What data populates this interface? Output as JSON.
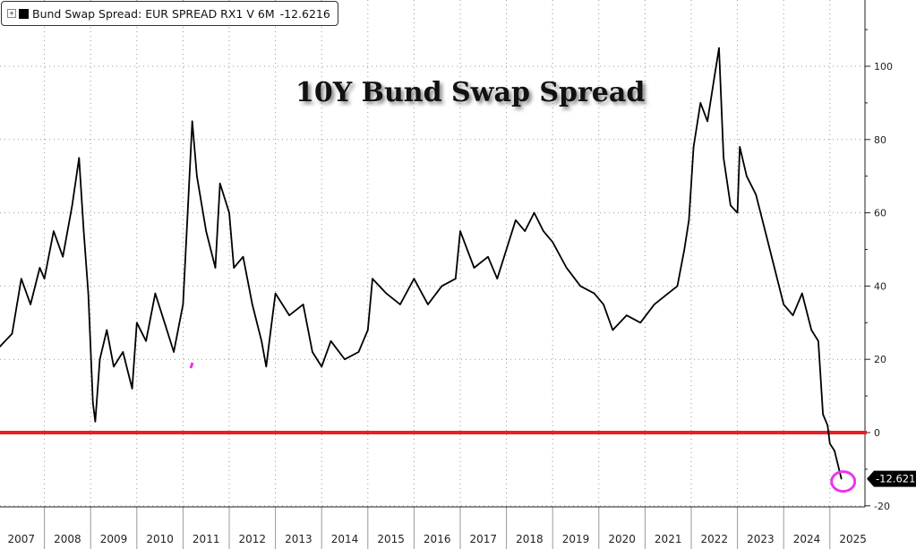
{
  "chart_data": {
    "type": "line",
    "title": "10Y Bund Swap Spread",
    "legend": {
      "label": "Bund Swap Spread: EUR SPREAD RX1 V 6M",
      "last_value": "-12.6216",
      "placement": "top-left"
    },
    "last_value_label": "-12.6216",
    "xlabel": "",
    "ylabel": "",
    "xlim": [
      2007,
      2025.4
    ],
    "ylim": [
      -25,
      112
    ],
    "y_ticks": [
      100,
      80,
      60,
      40,
      20,
      0,
      -20
    ],
    "x_tick_labels": [
      "2007",
      "2008",
      "2009",
      "2010",
      "2011",
      "2012",
      "2013",
      "2014",
      "2015",
      "2016",
      "2017",
      "2018",
      "2019",
      "2020",
      "2021",
      "2022",
      "2023",
      "2024",
      "2025"
    ],
    "grid": true,
    "axis_side": "right",
    "reference_line": {
      "y": 0,
      "color": "#ee1c25"
    },
    "highlight_color": "#ee33ee",
    "series": [
      {
        "color": "#000000",
        "x": [
          2007.0,
          2007.3,
          2007.5,
          2007.7,
          2007.9,
          2008.0,
          2008.2,
          2008.4,
          2008.6,
          2008.75,
          2008.85,
          2008.95,
          2009.05,
          2009.1,
          2009.2,
          2009.35,
          2009.5,
          2009.7,
          2009.9,
          2010.0,
          2010.2,
          2010.4,
          2010.6,
          2010.8,
          2011.0,
          2011.1,
          2011.2,
          2011.3,
          2011.5,
          2011.7,
          2011.8,
          2012.0,
          2012.1,
          2012.3,
          2012.5,
          2012.7,
          2012.8,
          2012.9,
          2013.0,
          2013.3,
          2013.6,
          2013.8,
          2014.0,
          2014.2,
          2014.5,
          2014.8,
          2015.0,
          2015.1,
          2015.4,
          2015.7,
          2016.0,
          2016.3,
          2016.6,
          2016.9,
          2017.0,
          2017.3,
          2017.6,
          2017.8,
          2018.0,
          2018.2,
          2018.4,
          2018.6,
          2018.8,
          2019.0,
          2019.3,
          2019.6,
          2019.9,
          2020.1,
          2020.3,
          2020.6,
          2020.9,
          2021.2,
          2021.5,
          2021.7,
          2021.85,
          2021.95,
          2022.05,
          2022.2,
          2022.35,
          2022.5,
          2022.6,
          2022.7,
          2022.85,
          2023.0,
          2023.05,
          2023.2,
          2023.4,
          2023.6,
          2023.8,
          2024.0,
          2024.2,
          2024.4,
          2024.6,
          2024.75,
          2024.85,
          2024.95,
          2025.0,
          2025.1,
          2025.25
        ],
        "values": [
          23,
          27,
          42,
          35,
          45,
          42,
          55,
          48,
          62,
          75,
          55,
          38,
          8,
          3,
          20,
          28,
          18,
          22,
          12,
          30,
          25,
          38,
          30,
          22,
          35,
          60,
          85,
          70,
          55,
          45,
          68,
          60,
          45,
          48,
          35,
          25,
          18,
          28,
          38,
          32,
          35,
          22,
          18,
          25,
          20,
          22,
          28,
          42,
          38,
          35,
          42,
          35,
          40,
          42,
          55,
          45,
          48,
          42,
          50,
          58,
          55,
          60,
          55,
          52,
          45,
          40,
          38,
          35,
          28,
          32,
          30,
          35,
          38,
          40,
          50,
          58,
          78,
          90,
          85,
          97,
          105,
          75,
          62,
          60,
          78,
          70,
          65,
          55,
          45,
          35,
          32,
          38,
          28,
          25,
          5,
          2,
          -3,
          -5,
          -12.6216
        ]
      }
    ]
  }
}
